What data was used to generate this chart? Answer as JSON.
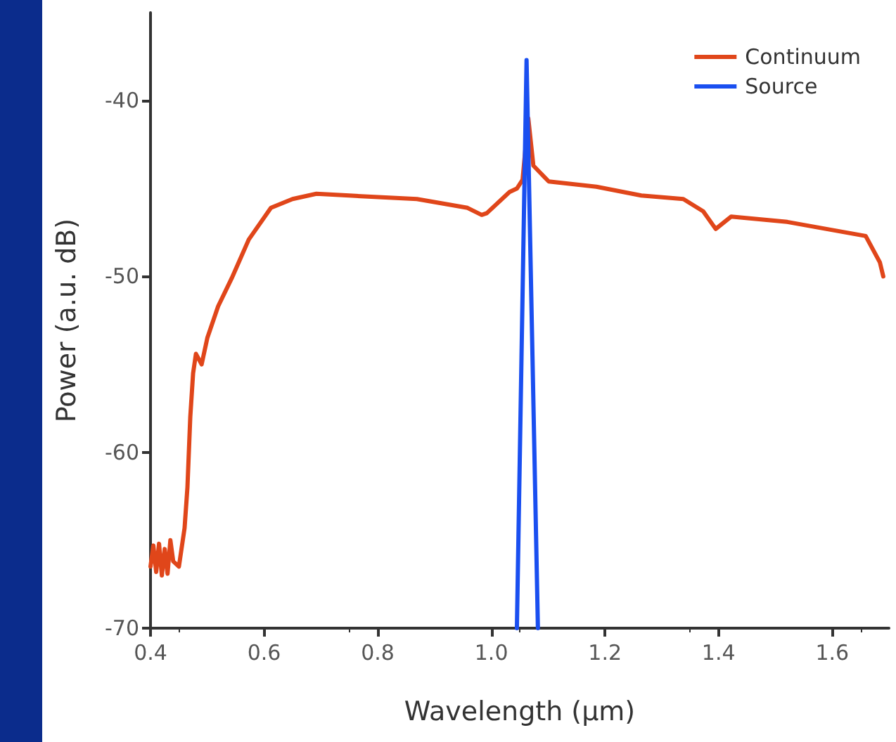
{
  "chart_data": {
    "type": "line",
    "xlabel": "Wavelength (μm)",
    "ylabel": "Power (a.u. dB)",
    "xlim": [
      0.4,
      1.7
    ],
    "xticks": [
      0.4,
      0.6,
      0.8,
      {
        "value": 1.0,
        "label": "1.0"
      },
      1.2,
      1.4,
      1.6
    ],
    "ylim": [
      -70,
      -35
    ],
    "yticks": [
      -70,
      -60,
      -50,
      -40
    ],
    "grid": false,
    "legend": "top right",
    "marker": "none",
    "line_style": "solid",
    "series": [
      {
        "name": "Continuum",
        "color": "#e0461a",
        "x": [
          0.4,
          0.405,
          0.41,
          0.415,
          0.42,
          0.425,
          0.43,
          0.435,
          0.44,
          0.45,
          0.46,
          0.465,
          0.47,
          0.475,
          0.48,
          0.49,
          0.5,
          0.519,
          0.543,
          0.573,
          0.612,
          0.65,
          0.692,
          0.75,
          0.869,
          0.958,
          0.983,
          0.992,
          1.032,
          1.045,
          1.055,
          1.065,
          1.074,
          1.101,
          1.185,
          1.264,
          1.338,
          1.373,
          1.395,
          1.422,
          1.521,
          1.659,
          1.684,
          1.69
        ],
        "values": [
          -66.5,
          -65.3,
          -66.8,
          -65.2,
          -67,
          -65.5,
          -66.9,
          -65,
          -66.2,
          -66.5,
          -64.3,
          -62,
          -58,
          -55.5,
          -54.4,
          -55,
          -53.5,
          -51.7,
          -50.1,
          -47.9,
          -46.1,
          -45.6,
          -45.3,
          -45.4,
          -45.6,
          -46.1,
          -46.5,
          -46.4,
          -45.2,
          -45,
          -44.5,
          -41,
          -43.7,
          -44.6,
          -44.9,
          -45.4,
          -45.6,
          -46.3,
          -47.3,
          -46.6,
          -46.9,
          -47.7,
          -49.2,
          -50
        ]
      },
      {
        "name": "Source",
        "color": "#1a4ff0",
        "x": [
          1.045,
          1.062,
          1.082
        ],
        "values": [
          -70,
          -37.7,
          -70
        ]
      }
    ]
  }
}
